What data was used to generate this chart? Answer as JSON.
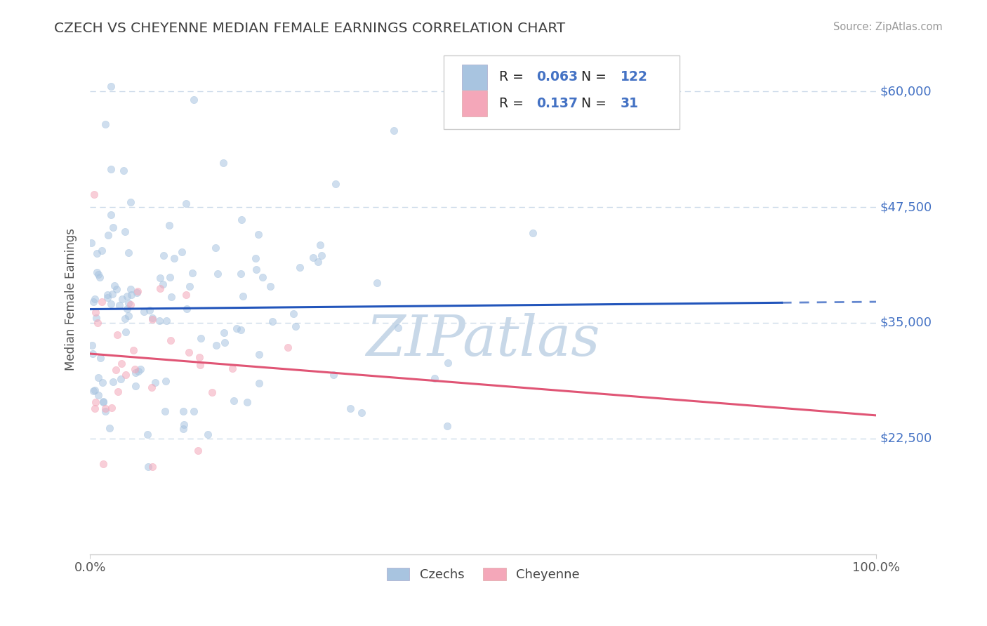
{
  "title": "CZECH VS CHEYENNE MEDIAN FEMALE EARNINGS CORRELATION CHART",
  "source": "Source: ZipAtlas.com",
  "ylabel": "Median Female Earnings",
  "xlim": [
    0.0,
    1.0
  ],
  "ylim": [
    10000,
    65000
  ],
  "yticks": [
    22500,
    35000,
    47500,
    60000
  ],
  "ytick_labels": [
    "$22,500",
    "$35,000",
    "$47,500",
    "$60,000"
  ],
  "xticks": [
    0.0,
    1.0
  ],
  "xtick_labels": [
    "0.0%",
    "100.0%"
  ],
  "czech_color": "#a8c4e0",
  "cheyenne_color": "#f4a7b9",
  "czech_line_color": "#2255bb",
  "cheyenne_line_color": "#e05575",
  "axis_label_color": "#4472c4",
  "title_color": "#404040",
  "source_color": "#999999",
  "legend_R_czech": "0.063",
  "legend_N_czech": "122",
  "legend_R_cheyenne": "0.137",
  "legend_N_cheyenne": "31",
  "czech_R": 0.063,
  "czech_N": 122,
  "cheyenne_R": 0.137,
  "cheyenne_N": 31,
  "background_color": "#ffffff",
  "grid_color": "#c8d8e8",
  "watermark_text": "ZIPatlas",
  "watermark_color": "#c8d8e8",
  "watermark_fontsize": 58,
  "marker_size": 55,
  "marker_alpha": 0.55
}
